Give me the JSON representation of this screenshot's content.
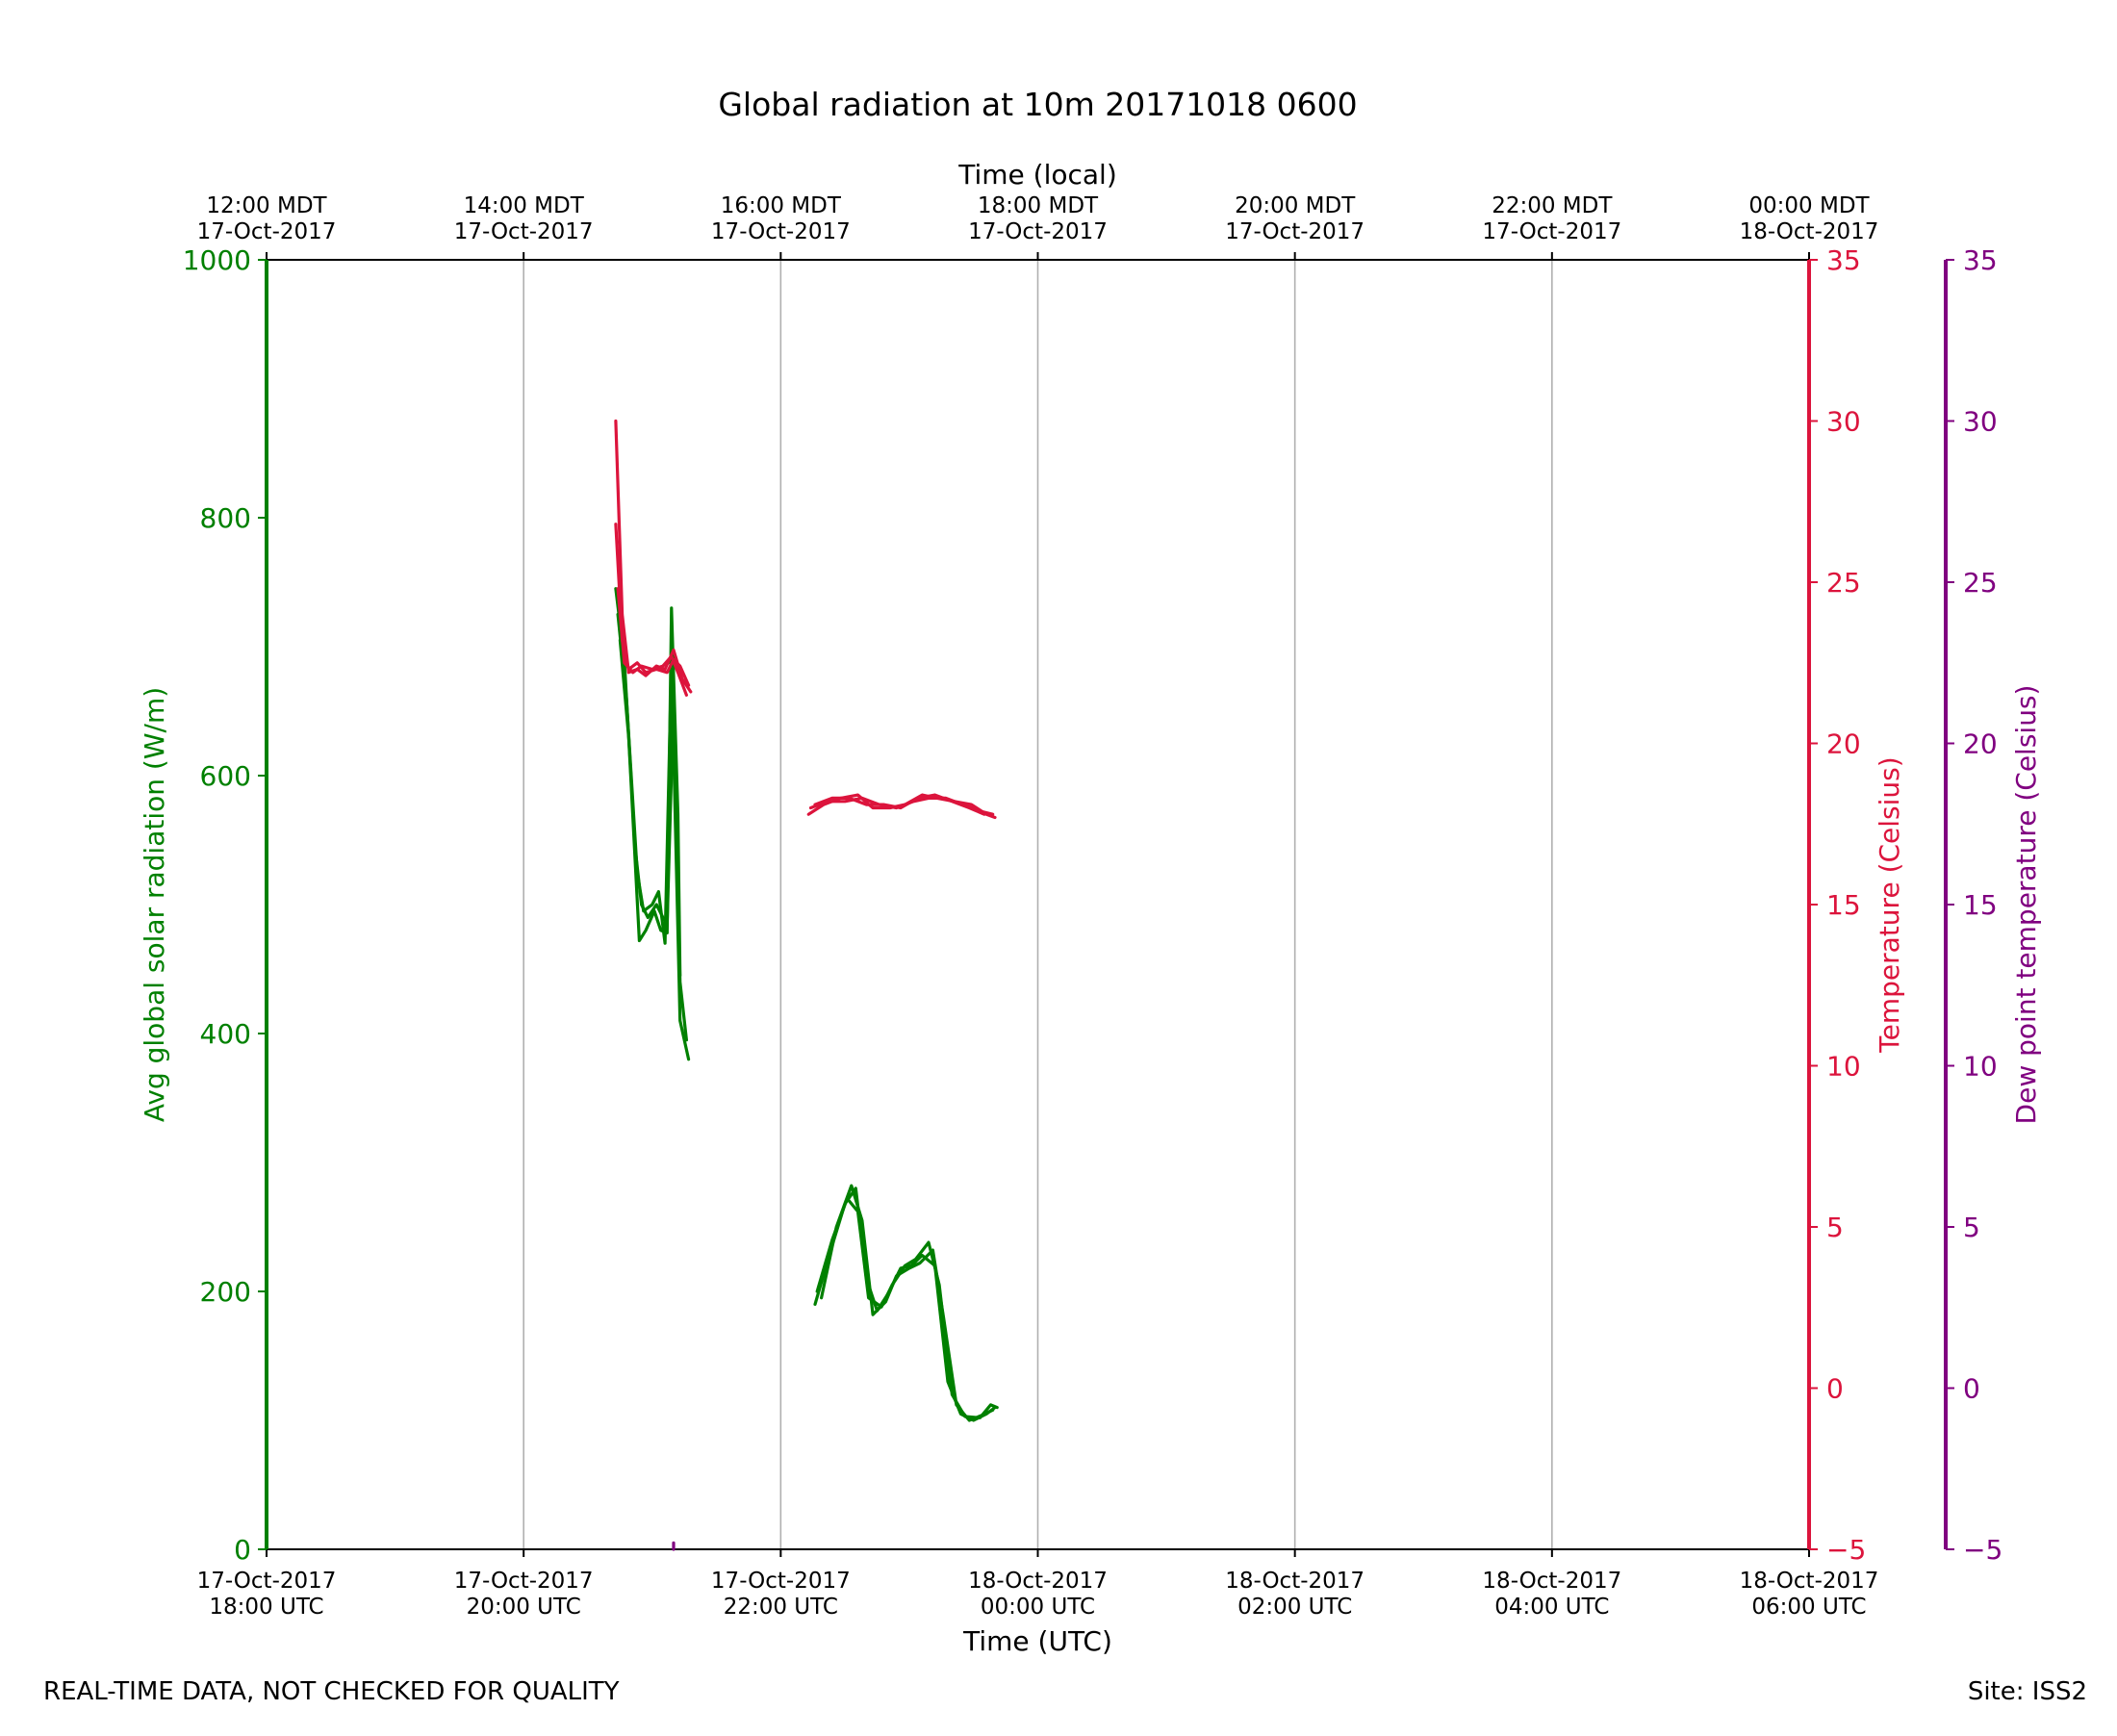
{
  "chart_data": {
    "type": "line",
    "title": "Global radiation at 10m 20171018 0600",
    "xlabel": "Time (UTC)",
    "top_xlabel": "Time (local)",
    "x_ticks_bottom": [
      {
        "line1": "17-Oct-2017",
        "line2": "18:00 UTC"
      },
      {
        "line1": "17-Oct-2017",
        "line2": "20:00 UTC"
      },
      {
        "line1": "17-Oct-2017",
        "line2": "22:00 UTC"
      },
      {
        "line1": "18-Oct-2017",
        "line2": "00:00 UTC"
      },
      {
        "line1": "18-Oct-2017",
        "line2": "02:00 UTC"
      },
      {
        "line1": "18-Oct-2017",
        "line2": "04:00 UTC"
      },
      {
        "line1": "18-Oct-2017",
        "line2": "06:00 UTC"
      }
    ],
    "x_ticks_top": [
      {
        "line1": "12:00 MDT",
        "line2": "17-Oct-2017"
      },
      {
        "line1": "14:00 MDT",
        "line2": "17-Oct-2017"
      },
      {
        "line1": "16:00 MDT",
        "line2": "17-Oct-2017"
      },
      {
        "line1": "18:00 MDT",
        "line2": "17-Oct-2017"
      },
      {
        "line1": "20:00 MDT",
        "line2": "17-Oct-2017"
      },
      {
        "line1": "22:00 MDT",
        "line2": "17-Oct-2017"
      },
      {
        "line1": "00:00 MDT",
        "line2": "18-Oct-2017"
      }
    ],
    "x_range_utc": [
      "2017-10-17 18:00",
      "2017-10-18 06:00"
    ],
    "grid": "vertical",
    "axes": {
      "radiation": {
        "label": "Avg global solar radiation (W/m)",
        "range": [
          0,
          1000
        ],
        "ticks": [
          "0",
          "200",
          "400",
          "600",
          "800",
          "1000"
        ],
        "color": "#008000",
        "side": "left"
      },
      "temperature": {
        "label": "Temperature (Celsius)",
        "range": [
          -5,
          35
        ],
        "ticks": [
          "−5",
          "0",
          "5",
          "10",
          "15",
          "20",
          "25",
          "30",
          "35"
        ],
        "color": "#dc143c",
        "side": "right"
      },
      "dewpoint": {
        "label": "Dew point temperature (Celsius)",
        "range": [
          -5,
          35
        ],
        "ticks": [
          "−5",
          "0",
          "5",
          "10",
          "15",
          "20",
          "25",
          "30",
          "35"
        ],
        "color": "#800080",
        "side": "right-outer"
      }
    },
    "series": [
      {
        "axis": "radiation",
        "color": "#008000",
        "segments": [
          [
            [
              "2017-10-17 20:43",
              745
            ],
            [
              "2017-10-17 20:47",
              690
            ],
            [
              "2017-10-17 20:52",
              545
            ],
            [
              "2017-10-17 20:55",
              500
            ],
            [
              "2017-10-17 20:58",
              490
            ],
            [
              "2017-10-17 21:02",
              500
            ],
            [
              "2017-10-17 21:05",
              490
            ],
            [
              "2017-10-17 21:07",
              485
            ],
            [
              "2017-10-17 21:10",
              660
            ],
            [
              "2017-10-17 21:13",
              440
            ],
            [
              "2017-10-17 21:16",
              395
            ]
          ],
          [
            [
              "2017-10-17 20:44",
              725
            ],
            [
              "2017-10-17 20:48",
              660
            ],
            [
              "2017-10-17 20:53",
              525
            ],
            [
              "2017-10-17 20:56",
              495
            ],
            [
              "2017-10-17 21:00",
              500
            ],
            [
              "2017-10-17 21:03",
              510
            ],
            [
              "2017-10-17 21:06",
              470
            ],
            [
              "2017-10-17 21:09",
              690
            ],
            [
              "2017-10-17 21:13",
              410
            ],
            [
              "2017-10-17 21:17",
              380
            ]
          ],
          [
            [
              "2017-10-17 20:45",
              705
            ],
            [
              "2017-10-17 20:49",
              630
            ],
            [
              "2017-10-17 20:54",
              472
            ],
            [
              "2017-10-17 20:57",
              480
            ],
            [
              "2017-10-17 21:01",
              495
            ],
            [
              "2017-10-17 21:04",
              480
            ],
            [
              "2017-10-17 21:07",
              478
            ],
            [
              "2017-10-17 21:09",
              730
            ],
            [
              "2017-10-17 21:12",
              570
            ],
            [
              "2017-10-17 21:13",
              445
            ]
          ]
        ]
      },
      {
        "axis": "radiation",
        "color": "#008000",
        "segments": [
          [
            [
              "2017-10-17 22:16",
              190
            ],
            [
              "2017-10-17 22:23",
              230
            ],
            [
              "2017-10-17 22:30",
              268
            ],
            [
              "2017-10-17 22:35",
              280
            ],
            [
              "2017-10-17 22:40",
              210
            ],
            [
              "2017-10-17 22:45",
              185
            ],
            [
              "2017-10-17 22:50",
              198
            ],
            [
              "2017-10-17 22:56",
              218
            ],
            [
              "2017-10-17 23:01",
              220
            ],
            [
              "2017-10-17 23:06",
              228
            ],
            [
              "2017-10-17 23:12",
              220
            ],
            [
              "2017-10-17 23:18",
              130
            ],
            [
              "2017-10-17 23:24",
              105
            ],
            [
              "2017-10-17 23:30",
              100
            ],
            [
              "2017-10-17 23:36",
              105
            ],
            [
              "2017-10-17 23:40",
              110
            ]
          ],
          [
            [
              "2017-10-17 22:17",
              200
            ],
            [
              "2017-10-17 22:24",
              240
            ],
            [
              "2017-10-17 22:31",
              272
            ],
            [
              "2017-10-17 22:36",
              262
            ],
            [
              "2017-10-17 22:41",
              195
            ],
            [
              "2017-10-17 22:47",
              188
            ],
            [
              "2017-10-17 22:52",
              205
            ],
            [
              "2017-10-17 22:58",
              220
            ],
            [
              "2017-10-17 23:03",
              225
            ],
            [
              "2017-10-17 23:09",
              238
            ],
            [
              "2017-10-17 23:14",
              205
            ],
            [
              "2017-10-17 23:20",
              120
            ],
            [
              "2017-10-17 23:26",
              103
            ],
            [
              "2017-10-17 23:33",
              102
            ],
            [
              "2017-10-17 23:38",
              112
            ],
            [
              "2017-10-17 23:41",
              110
            ]
          ],
          [
            [
              "2017-10-17 22:19",
              195
            ],
            [
              "2017-10-17 22:26",
              250
            ],
            [
              "2017-10-17 22:33",
              282
            ],
            [
              "2017-10-17 22:38",
              255
            ],
            [
              "2017-10-17 22:43",
              182
            ],
            [
              "2017-10-17 22:49",
              192
            ],
            [
              "2017-10-17 22:54",
              212
            ],
            [
              "2017-10-17 23:00",
              218
            ],
            [
              "2017-10-17 23:05",
              222
            ],
            [
              "2017-10-17 23:11",
              232
            ],
            [
              "2017-10-17 23:16",
              180
            ],
            [
              "2017-10-17 23:22",
              112
            ],
            [
              "2017-10-17 23:28",
              100
            ],
            [
              "2017-10-17 23:34",
              104
            ],
            [
              "2017-10-17 23:39",
              108
            ]
          ]
        ]
      },
      {
        "axis": "temperature",
        "color": "#dc143c",
        "segments": [
          [
            [
              "2017-10-17 20:43",
              30.0
            ],
            [
              "2017-10-17 20:46",
              24.0
            ],
            [
              "2017-10-17 20:49",
              22.2
            ],
            [
              "2017-10-17 20:53",
              22.3
            ],
            [
              "2017-10-17 20:57",
              22.1
            ],
            [
              "2017-10-17 21:02",
              22.4
            ],
            [
              "2017-10-17 21:06",
              22.3
            ],
            [
              "2017-10-17 21:10",
              22.9
            ],
            [
              "2017-10-17 21:14",
              22.0
            ],
            [
              "2017-10-17 21:18",
              21.6
            ]
          ],
          [
            [
              "2017-10-17 20:43",
              26.8
            ],
            [
              "2017-10-17 20:46",
              23.2
            ],
            [
              "2017-10-17 20:49",
              22.3
            ],
            [
              "2017-10-17 20:53",
              22.5
            ],
            [
              "2017-10-17 20:57",
              22.2
            ],
            [
              "2017-10-17 21:02",
              22.3
            ],
            [
              "2017-10-17 21:07",
              22.2
            ],
            [
              "2017-10-17 21:10",
              22.6
            ],
            [
              "2017-10-17 21:13",
              22.4
            ],
            [
              "2017-10-17 21:17",
              21.8
            ]
          ],
          [
            [
              "2017-10-17 20:44",
              24.8
            ],
            [
              "2017-10-17 20:47",
              22.5
            ],
            [
              "2017-10-17 20:51",
              22.2
            ],
            [
              "2017-10-17 20:55",
              22.4
            ],
            [
              "2017-10-17 21:00",
              22.3
            ],
            [
              "2017-10-17 21:05",
              22.4
            ],
            [
              "2017-10-17 21:09",
              22.7
            ],
            [
              "2017-10-17 21:12",
              22.2
            ],
            [
              "2017-10-17 21:16",
              21.5
            ]
          ]
        ]
      },
      {
        "axis": "temperature",
        "color": "#dc143c",
        "segments": [
          [
            [
              "2017-10-17 22:13",
              17.8
            ],
            [
              "2017-10-17 22:20",
              18.1
            ],
            [
              "2017-10-17 22:28",
              18.3
            ],
            [
              "2017-10-17 22:36",
              18.4
            ],
            [
              "2017-10-17 22:43",
              18.0
            ],
            [
              "2017-10-17 22:51",
              18.0
            ],
            [
              "2017-10-17 22:58",
              18.1
            ],
            [
              "2017-10-17 23:06",
              18.4
            ],
            [
              "2017-10-17 23:13",
              18.3
            ],
            [
              "2017-10-17 23:21",
              18.2
            ],
            [
              "2017-10-17 23:29",
              18.1
            ],
            [
              "2017-10-17 23:36",
              17.8
            ],
            [
              "2017-10-17 23:40",
              17.7
            ]
          ],
          [
            [
              "2017-10-17 22:14",
              18.0
            ],
            [
              "2017-10-17 22:22",
              18.2
            ],
            [
              "2017-10-17 22:30",
              18.2
            ],
            [
              "2017-10-17 22:38",
              18.3
            ],
            [
              "2017-10-17 22:46",
              18.1
            ],
            [
              "2017-10-17 22:54",
              18.0
            ],
            [
              "2017-10-17 23:02",
              18.2
            ],
            [
              "2017-10-17 23:09",
              18.3
            ],
            [
              "2017-10-17 23:17",
              18.3
            ],
            [
              "2017-10-17 23:25",
              18.1
            ],
            [
              "2017-10-17 23:33",
              17.9
            ],
            [
              "2017-10-17 23:39",
              17.8
            ]
          ],
          [
            [
              "2017-10-17 22:16",
              18.1
            ],
            [
              "2017-10-17 22:24",
              18.3
            ],
            [
              "2017-10-17 22:32",
              18.3
            ],
            [
              "2017-10-17 22:40",
              18.1
            ],
            [
              "2017-10-17 22:48",
              18.1
            ],
            [
              "2017-10-17 22:56",
              18.0
            ],
            [
              "2017-10-17 23:04",
              18.3
            ],
            [
              "2017-10-17 23:12",
              18.4
            ],
            [
              "2017-10-17 23:20",
              18.2
            ],
            [
              "2017-10-17 23:28",
              18.0
            ],
            [
              "2017-10-17 23:35",
              17.8
            ]
          ]
        ]
      },
      {
        "axis": "dewpoint",
        "color": "#800080",
        "segments": [
          [
            [
              "2017-10-17 21:10",
              -5.0
            ],
            [
              "2017-10-17 21:10",
              -4.8
            ]
          ]
        ]
      }
    ]
  },
  "footer": {
    "left": "REAL-TIME DATA, NOT CHECKED FOR QUALITY",
    "right": "Site: ISS2"
  }
}
